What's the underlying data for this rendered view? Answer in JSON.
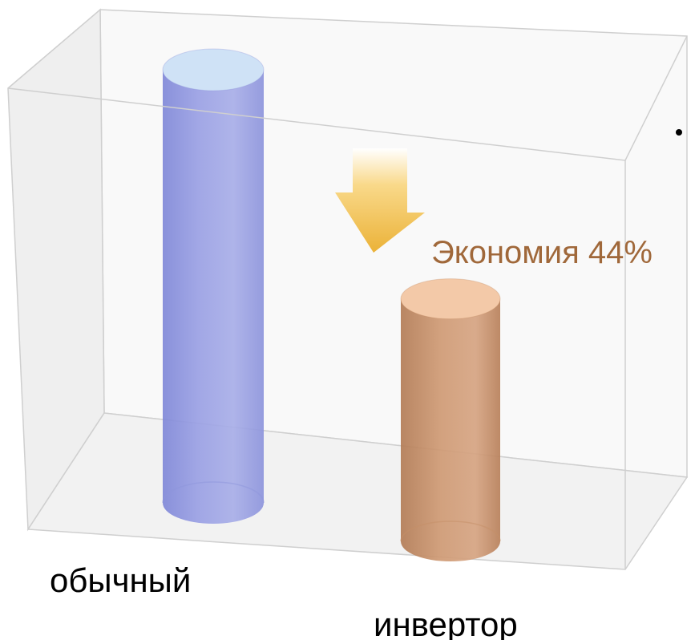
{
  "chart_data": {
    "type": "bar",
    "style": "3d-cylinder",
    "categories": [
      "обычный",
      "инвертор"
    ],
    "values": [
      100,
      56
    ],
    "colors": [
      "#8e95db",
      "#c58f68"
    ],
    "title": "",
    "xlabel": "",
    "ylabel": "",
    "ylim": [
      0,
      100
    ],
    "grid": false,
    "legend": "none",
    "annotation": {
      "text": "Экономия 44%",
      "color": "#a0683a",
      "arrow_color": "#f0b83c"
    }
  }
}
